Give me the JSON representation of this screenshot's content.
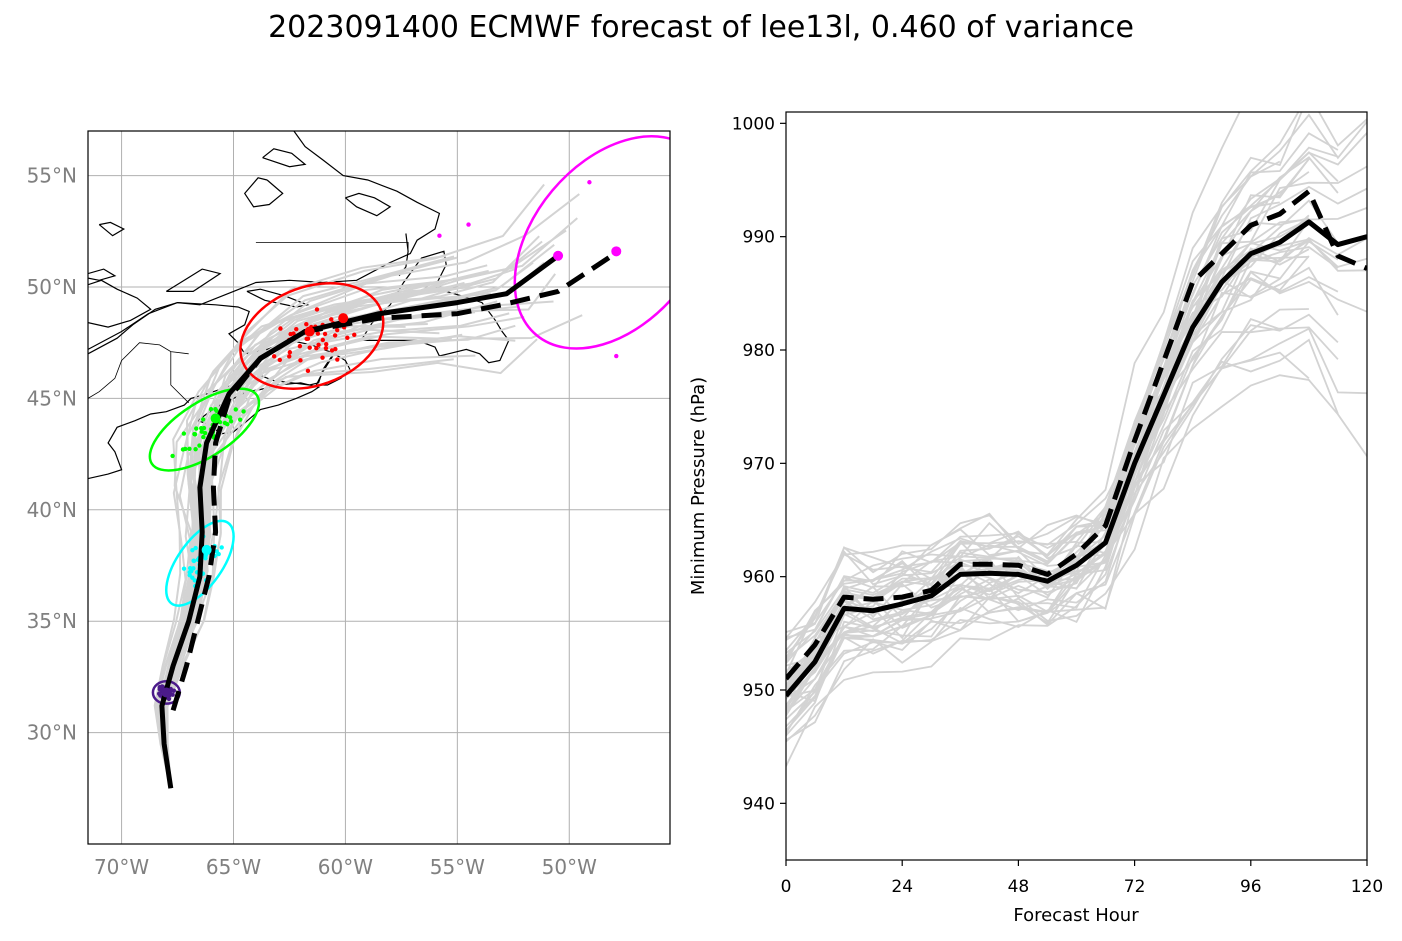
{
  "title": "2023091400 ECMWF forecast of lee13l, 0.460 of variance",
  "colors": {
    "ensemble": "#d3d3d3",
    "mean": "#000000",
    "day1": "#4b1a8a",
    "day2": "#00ffff",
    "day3": "#00ff00",
    "day4": "#ff0000",
    "day5": "#ff00ff",
    "grid": "#b0b0b0",
    "coast": "#000000"
  },
  "chart_data": [
    {
      "type": "map",
      "projection": "plate-carree",
      "lon_range": [
        -71.5,
        -45.5
      ],
      "lat_range": [
        25,
        57
      ],
      "xtick_labels": [
        "70°W",
        "65°W",
        "60°W",
        "55°W",
        "50°W"
      ],
      "xtick_values": [
        -70,
        -65,
        -60,
        -55,
        -50
      ],
      "ytick_labels": [
        "30°N",
        "35°N",
        "40°N",
        "45°N",
        "50°N",
        "55°N"
      ],
      "ytick_values": [
        30,
        35,
        40,
        45,
        50,
        55
      ],
      "grid": true,
      "tracks": {
        "solid_mean": [
          [
            -67.8,
            27.5
          ],
          [
            -68.1,
            29.5
          ],
          [
            -68.2,
            31.2
          ],
          [
            -67.7,
            33.0
          ],
          [
            -67.0,
            35.0
          ],
          [
            -66.5,
            37.0
          ],
          [
            -66.4,
            39.0
          ],
          [
            -66.5,
            41.0
          ],
          [
            -66.2,
            43.0
          ],
          [
            -65.2,
            45.2
          ],
          [
            -63.8,
            46.8
          ],
          [
            -61.8,
            48.0
          ],
          [
            -58.5,
            48.8
          ],
          [
            -55.0,
            49.3
          ],
          [
            -52.8,
            49.7
          ],
          [
            -50.5,
            51.4
          ]
        ],
        "dashed_mean": [
          [
            -67.7,
            31.0
          ],
          [
            -67.1,
            33.0
          ],
          [
            -66.6,
            35.0
          ],
          [
            -66.1,
            37.0
          ],
          [
            -65.8,
            39.0
          ],
          [
            -65.9,
            41.0
          ],
          [
            -65.8,
            43.0
          ],
          [
            -65.2,
            45.0
          ],
          [
            -63.8,
            46.8
          ],
          [
            -61.8,
            48.0
          ],
          [
            -58.5,
            48.6
          ],
          [
            -55.0,
            48.8
          ],
          [
            -53.0,
            49.2
          ],
          [
            -50.5,
            49.8
          ],
          [
            -47.8,
            51.6
          ]
        ]
      },
      "ellipses": [
        {
          "label": "day1",
          "center": [
            -68.0,
            31.8
          ],
          "a": 0.6,
          "b": 0.5,
          "tilt": 0
        },
        {
          "label": "day2",
          "center": [
            -66.5,
            37.6
          ],
          "a": 2.2,
          "b": 1.0,
          "tilt": 55
        },
        {
          "label": "day3",
          "center": [
            -66.3,
            43.6
          ],
          "a": 2.8,
          "b": 1.2,
          "tilt": 33
        },
        {
          "label": "day4",
          "center": [
            -61.5,
            47.8
          ],
          "a": 3.3,
          "b": 2.2,
          "tilt": 20
        },
        {
          "label": "day5",
          "center": [
            -48.0,
            52.0
          ],
          "a": 5.4,
          "b": 3.6,
          "tilt": 50
        }
      ],
      "mean_markers": [
        {
          "label": "day1",
          "lonlat": [
            -68.0,
            31.8
          ]
        },
        {
          "label": "day2",
          "lonlat": [
            -66.2,
            38.2
          ]
        },
        {
          "label": "day3",
          "lonlat": [
            -65.8,
            44.1
          ]
        },
        {
          "label": "day4",
          "lonlat": [
            -61.6,
            48.0
          ]
        },
        {
          "label": "day4",
          "lonlat": [
            -60.1,
            48.6
          ]
        },
        {
          "label": "day5",
          "lonlat": [
            -50.5,
            51.4
          ]
        },
        {
          "label": "day5",
          "lonlat": [
            -47.9,
            51.6
          ]
        }
      ]
    },
    {
      "type": "line",
      "xlabel": "Forecast Hour",
      "ylabel": "Minimum Pressure (hPa)",
      "xlim": [
        0,
        120
      ],
      "ylim": [
        935,
        1001
      ],
      "xticks": [
        0,
        24,
        48,
        72,
        96,
        120
      ],
      "yticks": [
        940,
        950,
        960,
        970,
        980,
        990,
        1000
      ],
      "hours": [
        0,
        6,
        12,
        18,
        24,
        30,
        36,
        42,
        48,
        54,
        60,
        66,
        72,
        78,
        84,
        90,
        96,
        102,
        108,
        114,
        120
      ],
      "series": [
        {
          "style": "solid",
          "values": [
            949.5,
            952.5,
            957.2,
            957.0,
            957.6,
            958.3,
            960.2,
            960.3,
            960.2,
            959.6,
            961.0,
            963.0,
            970.0,
            976.0,
            982.0,
            986.0,
            988.5,
            989.5,
            991.3,
            989.3,
            990.0
          ]
        },
        {
          "style": "dashed",
          "values": [
            951.0,
            954.0,
            958.2,
            958.0,
            958.2,
            958.8,
            961.1,
            961.1,
            961.0,
            960.2,
            962.0,
            964.5,
            972.0,
            979.0,
            986.0,
            988.5,
            991.0,
            992.0,
            994.0,
            988.3,
            987.2
          ]
        }
      ]
    }
  ]
}
